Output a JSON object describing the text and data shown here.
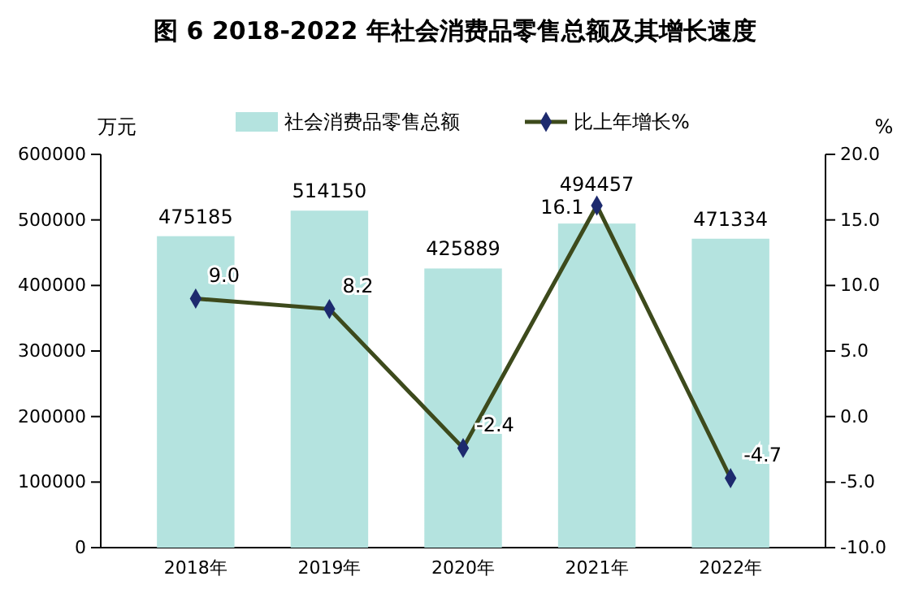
{
  "chart_data": {
    "type": "bar",
    "title": "图 6 2018-2022 年社会消费品零售总额及其增长速度",
    "ylabel": "万元",
    "y2label": "%",
    "categories": [
      "2018年",
      "2019年",
      "2020年",
      "2021年",
      "2022年"
    ],
    "series": [
      {
        "name": "社会消费品零售总额",
        "color": "#b4e3df",
        "values": [
          475185,
          514150,
          425889,
          494457,
          471334
        ],
        "value_labels": [
          "475185",
          "514150",
          "425889",
          "494457",
          "471334"
        ]
      },
      {
        "name": "比上年增长%",
        "type": "line",
        "axis": "y2",
        "color": "#3d4a1c",
        "marker": "diamond",
        "values": [
          9.0,
          8.2,
          -2.4,
          16.1,
          -4.7
        ],
        "value_labels": [
          "9.0",
          "8.2",
          "-2.4",
          "16.1",
          "-4.7"
        ]
      }
    ],
    "ylim": [
      0,
      600000
    ],
    "yticks": [
      0,
      100000,
      200000,
      300000,
      400000,
      500000,
      600000
    ],
    "y2lim": [
      -10,
      20
    ],
    "y2ticks": [
      {
        "value": -10,
        "label": "-10.0"
      },
      {
        "value": -5,
        "label": "-5.0"
      },
      {
        "value": 0,
        "label": "0.0"
      },
      {
        "value": 5,
        "label": "5.0"
      },
      {
        "value": 10,
        "label": "10.0"
      },
      {
        "value": 15,
        "label": "15.0"
      },
      {
        "value": 20,
        "label": "20.0"
      }
    ],
    "legend": "top",
    "grid": false
  }
}
